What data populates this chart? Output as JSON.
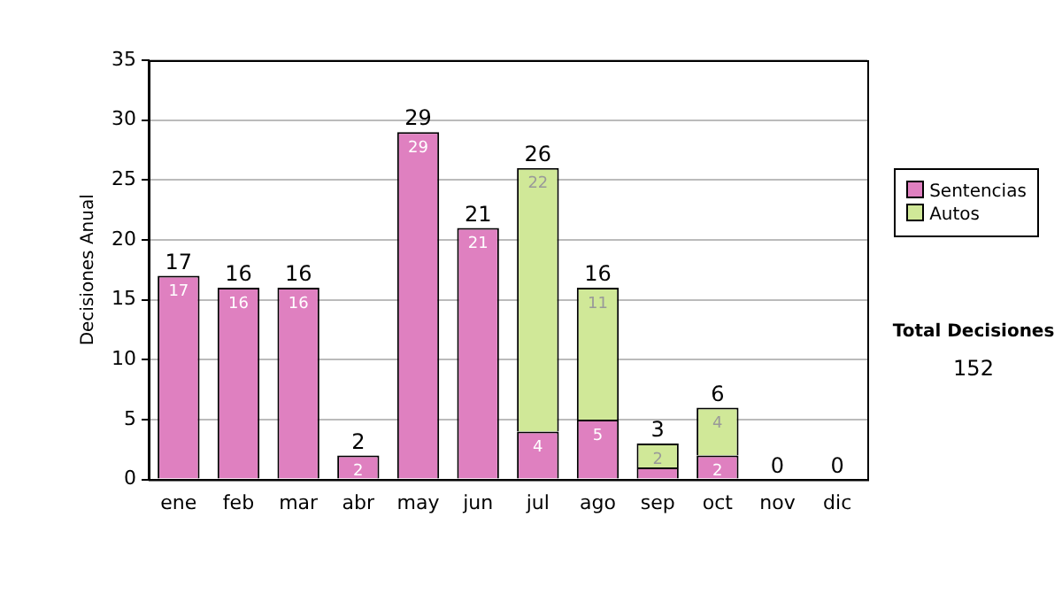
{
  "chart_data": {
    "type": "bar",
    "ylabel": "Decisiones Anual",
    "categories": [
      "ene",
      "feb",
      "mar",
      "abr",
      "may",
      "jun",
      "jul",
      "ago",
      "sep",
      "oct",
      "nov",
      "dic"
    ],
    "stacked": true,
    "series": [
      {
        "name": "Sentencias",
        "color": "#df80c0",
        "values": [
          17,
          16,
          16,
          2,
          29,
          21,
          4,
          5,
          1,
          2,
          0,
          0
        ],
        "value_labels": [
          "17",
          "16",
          "16",
          "2",
          "29",
          "21",
          "4",
          "5",
          null,
          "2",
          null,
          null
        ]
      },
      {
        "name": "Autos",
        "color": "#d0e898",
        "values": [
          0,
          0,
          0,
          0,
          0,
          0,
          22,
          11,
          2,
          4,
          0,
          0
        ],
        "value_labels": [
          null,
          null,
          null,
          null,
          null,
          null,
          "22",
          "11",
          "2",
          "4",
          null,
          null
        ]
      }
    ],
    "totals": [
      "17",
      "16",
      "16",
      "2",
      "29",
      "21",
      "26",
      "16",
      "3",
      "6",
      "0",
      "0"
    ],
    "ylim": [
      0,
      35
    ],
    "yticks": [
      0,
      5,
      10,
      15,
      20,
      25,
      30,
      35
    ],
    "grid": "y",
    "legend": "right",
    "annotations": [
      "Total Decisiones",
      "152"
    ]
  }
}
